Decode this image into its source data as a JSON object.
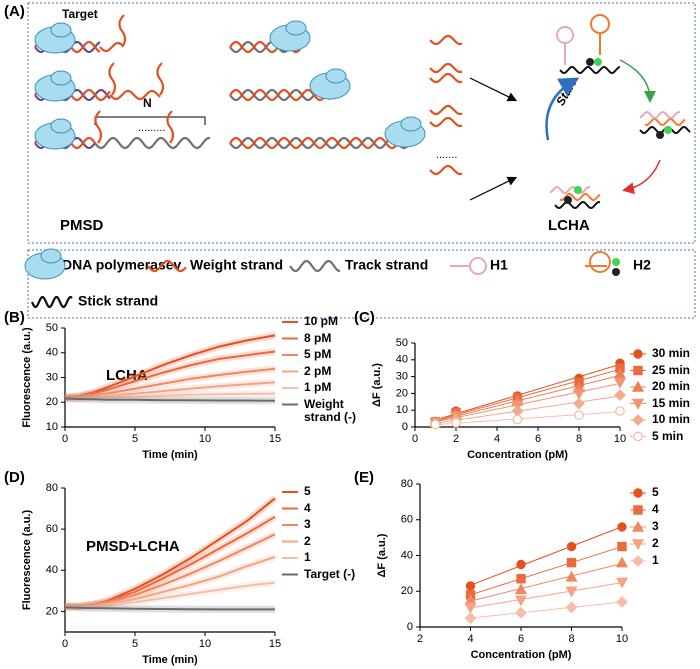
{
  "figure_labels": [
    "(A)",
    "(B)",
    "(C)",
    "(D)",
    "(E)"
  ],
  "panel_a": {
    "target": "Target",
    "n": "N",
    "pmsd": "PMSD",
    "lcha": "LCHA",
    "start": "Start"
  },
  "legend": {
    "items": [
      "DNA polymerasev",
      "Weight strand",
      "Track strand",
      "H1",
      "H2",
      "Stick strand"
    ]
  },
  "chart_data": [
    {
      "type": "line",
      "title": "LCHA",
      "x_label": "Time (min)",
      "y_label": "Fluorescence (a.u.)",
      "x": [
        0,
        1,
        2,
        3,
        5,
        7,
        9,
        11,
        13,
        15
      ],
      "xlim": [
        0,
        15
      ],
      "xticks": [
        0,
        5,
        10,
        15
      ],
      "ylim": [
        10,
        50
      ],
      "yticks": [
        10,
        20,
        30,
        40,
        50
      ],
      "series": [
        {
          "name": "10 pM",
          "color": "#e5501d",
          "values": [
            22,
            22.5,
            24,
            26,
            30.5,
            35,
            39,
            42.5,
            45,
            47
          ]
        },
        {
          "name": "8 pM",
          "color": "#ea6a3e",
          "values": [
            22,
            22.5,
            23.5,
            25,
            28.5,
            32,
            35,
            37.5,
            39,
            40.5
          ]
        },
        {
          "name": "5 pM",
          "color": "#ef8862",
          "values": [
            22,
            22,
            22.8,
            23.5,
            25.5,
            27.5,
            29.5,
            31,
            32.3,
            33.5
          ]
        },
        {
          "name": "2 pM",
          "color": "#f3a486",
          "values": [
            21.5,
            21.5,
            22,
            22.5,
            23.5,
            24.5,
            25.5,
            26.5,
            27.3,
            28
          ]
        },
        {
          "name": "1 pM",
          "color": "#f6bea8",
          "values": [
            21.5,
            21.5,
            21.7,
            22,
            22.3,
            22.6,
            23,
            23.2,
            23.4,
            23.5
          ]
        },
        {
          "name": "Weight strand (-)",
          "color": "#6b6b6b",
          "values": [
            21.5,
            21.3,
            21.2,
            21,
            21,
            20.8,
            20.8,
            20.7,
            20.7,
            20.6
          ]
        }
      ]
    },
    {
      "type": "scatter",
      "x_label": "Concentration (pM)",
      "y_label": "ΔF (a.u.)",
      "x": [
        1,
        2,
        5,
        8,
        10
      ],
      "xlim": [
        0,
        10
      ],
      "xticks": [
        0,
        2,
        4,
        6,
        8,
        10
      ],
      "ylim": [
        0,
        50
      ],
      "yticks": [
        0,
        10,
        20,
        30,
        40,
        50
      ],
      "series": [
        {
          "name": "30 min",
          "color": "#e5501d",
          "marker": "circle",
          "values": [
            3.2,
            9.5,
            18.5,
            29,
            38
          ]
        },
        {
          "name": "25 min",
          "color": "#ea6a3e",
          "marker": "square",
          "values": [
            3,
            8.5,
            17.5,
            26.5,
            35
          ]
        },
        {
          "name": "20 min",
          "color": "#ee7f56",
          "marker": "triangle-up",
          "values": [
            2.8,
            7.5,
            15.5,
            23.5,
            31.5
          ]
        },
        {
          "name": "15 min",
          "color": "#f19572",
          "marker": "triangle-down",
          "values": [
            2.5,
            6.5,
            13,
            20,
            26.5
          ]
        },
        {
          "name": "10 min",
          "color": "#f4aa8e",
          "marker": "diamond",
          "values": [
            2,
            4.5,
            9.5,
            14,
            19
          ]
        },
        {
          "name": "5 min",
          "color": "#f6bea8",
          "marker": "circle-open",
          "values": [
            1.5,
            2.5,
            4.5,
            7,
            9.5
          ]
        }
      ]
    },
    {
      "type": "line",
      "title": "PMSD+LCHA",
      "x_label": "Time (min)",
      "y_label": "Fluorescence (a.u.)",
      "x": [
        0,
        1,
        2,
        3,
        5,
        7,
        9,
        11,
        13,
        15
      ],
      "xlim": [
        0,
        15
      ],
      "xticks": [
        0,
        5,
        10,
        15
      ],
      "ylim": [
        10,
        80
      ],
      "yticks": [
        20,
        40,
        60,
        80
      ],
      "series": [
        {
          "name": "5",
          "color": "#e5501d",
          "values": [
            22.5,
            22.5,
            23.5,
            25,
            31,
            38,
            46,
            55,
            64,
            75
          ]
        },
        {
          "name": "4",
          "color": "#ea6a3e",
          "values": [
            22.5,
            22.5,
            23.3,
            24.5,
            29.5,
            36,
            43,
            50.5,
            58,
            66
          ]
        },
        {
          "name": "3",
          "color": "#ef8862",
          "values": [
            22.5,
            22.5,
            23,
            24,
            28,
            33,
            38.5,
            44.5,
            51,
            57.5
          ]
        },
        {
          "name": "2",
          "color": "#f3a486",
          "values": [
            22.5,
            22.3,
            22.8,
            23.5,
            26,
            29.5,
            33,
            37,
            42,
            46.5
          ]
        },
        {
          "name": "1",
          "color": "#f6bea8",
          "values": [
            22.5,
            22.3,
            22.5,
            23,
            24.5,
            26.5,
            28.5,
            30.5,
            32.5,
            34
          ]
        },
        {
          "name": "Target (-)",
          "color": "#6b6b6b",
          "values": [
            22,
            21.8,
            21.6,
            21.5,
            21.3,
            21.2,
            21.1,
            21,
            21,
            21
          ]
        }
      ]
    },
    {
      "type": "scatter",
      "x_label": "Concentration (pM)",
      "y_label": "ΔF (a.u.)",
      "x": [
        4,
        6,
        8,
        10
      ],
      "xlim": [
        2,
        10
      ],
      "xticks": [
        2,
        4,
        6,
        8,
        10
      ],
      "ylim": [
        0,
        80
      ],
      "yticks": [
        0,
        20,
        40,
        60,
        80
      ],
      "series": [
        {
          "name": "5",
          "color": "#e5501d",
          "marker": "circle",
          "values": [
            23,
            35,
            45,
            56
          ]
        },
        {
          "name": "4",
          "color": "#ea6a3e",
          "marker": "square",
          "values": [
            18,
            27,
            36,
            45
          ]
        },
        {
          "name": "3",
          "color": "#ef8862",
          "marker": "triangle-up",
          "values": [
            15,
            21,
            28,
            36
          ]
        },
        {
          "name": "2",
          "color": "#f3a486",
          "marker": "triangle-down",
          "values": [
            11,
            15,
            20,
            25
          ]
        },
        {
          "name": "1",
          "color": "#f6bea8",
          "marker": "diamond",
          "values": [
            5,
            8,
            11,
            14
          ]
        }
      ]
    }
  ]
}
